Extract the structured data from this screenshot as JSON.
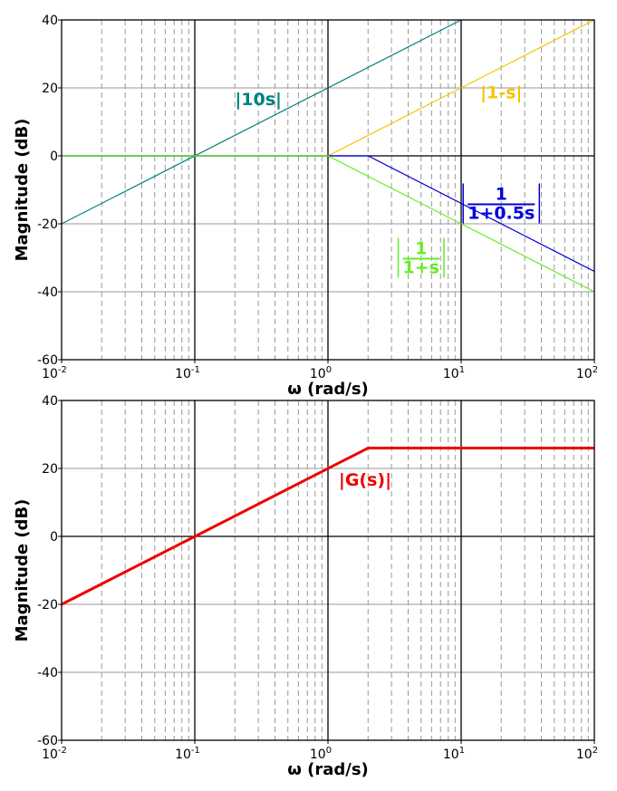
{
  "chart_data": [
    {
      "type": "line",
      "title": "",
      "xlabel": "ω (rad/s)",
      "ylabel": "Magnitude (dB)",
      "x_scale": "log",
      "xlim": [
        0.01,
        100
      ],
      "ylim": [
        -60,
        40
      ],
      "x_ticks": [
        {
          "value": 0.01,
          "base": "10",
          "exp": "-2"
        },
        {
          "value": 0.1,
          "base": "10",
          "exp": "-1"
        },
        {
          "value": 1,
          "base": "10",
          "exp": "0"
        },
        {
          "value": 10,
          "base": "10",
          "exp": "1"
        },
        {
          "value": 100,
          "base": "10",
          "exp": "2"
        }
      ],
      "y_ticks": [
        -60,
        -40,
        -20,
        0,
        20,
        40
      ],
      "grid": true,
      "series": [
        {
          "color": "#008080",
          "points": [
            [
              0.01,
              -20
            ],
            [
              10,
              40
            ]
          ]
        },
        {
          "color": "#f5c400",
          "points": [
            [
              1,
              0
            ],
            [
              100,
              40
            ]
          ]
        },
        {
          "color": "#0000e0",
          "points": [
            [
              0.01,
              0
            ],
            [
              2,
              0
            ],
            [
              100,
              -34
            ]
          ]
        },
        {
          "color": "#66ee22",
          "points": [
            [
              0.01,
              0
            ],
            [
              1,
              0
            ],
            [
              100,
              -40
            ]
          ]
        }
      ],
      "annotations": [
        {
          "text": "|10s|",
          "color": "#008080",
          "x": 0.3,
          "y": 15
        },
        {
          "text": "|1-s|",
          "color": "#f5c400",
          "x": 20,
          "y": 17
        },
        {
          "numerator": "1",
          "denominator": "1+0.5s",
          "color": "#0000e0",
          "x": 20,
          "y": -14
        },
        {
          "numerator": "1",
          "denominator": "1+s",
          "color": "#66ee22",
          "x": 5,
          "y": -30
        }
      ]
    },
    {
      "type": "line",
      "title": "",
      "xlabel": "ω (rad/s)",
      "ylabel": "Magnitude (dB)",
      "x_scale": "log",
      "xlim": [
        0.01,
        100
      ],
      "ylim": [
        -60,
        40
      ],
      "x_ticks": [
        {
          "value": 0.01,
          "base": "10",
          "exp": "-2"
        },
        {
          "value": 0.1,
          "base": "10",
          "exp": "-1"
        },
        {
          "value": 1,
          "base": "10",
          "exp": "0"
        },
        {
          "value": 10,
          "base": "10",
          "exp": "1"
        },
        {
          "value": 100,
          "base": "10",
          "exp": "2"
        }
      ],
      "y_ticks": [
        -60,
        -40,
        -20,
        0,
        20,
        40
      ],
      "grid": true,
      "series": [
        {
          "color": "#ee0000",
          "points": [
            [
              0.01,
              -20
            ],
            [
              2,
              26
            ],
            [
              100,
              26
            ]
          ]
        }
      ],
      "annotations": [
        {
          "text": "|G(s)|",
          "color": "#ee0000",
          "x": 1.9,
          "y": 15
        }
      ]
    }
  ]
}
